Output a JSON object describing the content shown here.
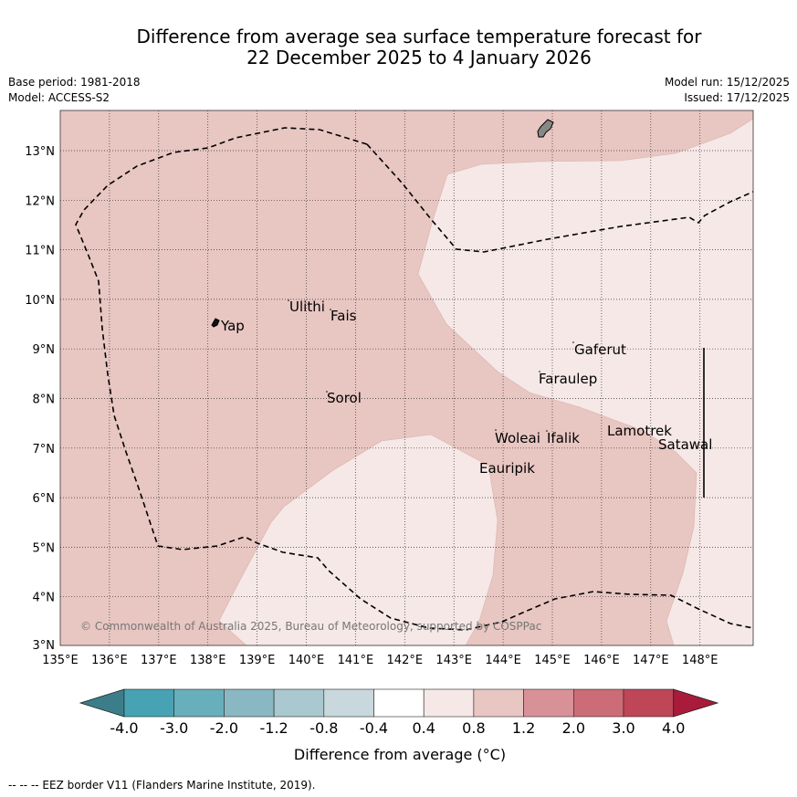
{
  "title": {
    "line1": "Difference from average sea surface temperature forecast for",
    "line2": "22 December 2025 to 4 January 2026"
  },
  "meta": {
    "base_period": "Base period: 1981-2018",
    "model": "Model: ACCESS-S2",
    "model_run": "Model run: 15/12/2025",
    "issued": "Issued: 17/12/2025"
  },
  "map": {
    "lon_labels": [
      "135°E",
      "136°E",
      "137°E",
      "138°E",
      "139°E",
      "140°E",
      "141°E",
      "142°E",
      "143°E",
      "144°E",
      "145°E",
      "146°E",
      "147°E",
      "148°E"
    ],
    "lat_labels": [
      "13°N",
      "12°N",
      "11°N",
      "10°N",
      "9°N",
      "8°N",
      "7°N",
      "6°N",
      "5°N",
      "4°N",
      "3°N"
    ],
    "places": [
      "Yap",
      "Ulithi",
      "Fais",
      "Gaferut",
      "Faraulep",
      "Sorol",
      "Lamotrek",
      "Woleai",
      "Ifalik",
      "Satawal",
      "Eauripik"
    ],
    "copyright": "© Commonwealth of Australia 2025, Bureau of Meteorology, supported by COSPPac",
    "colors": {
      "anomaly_0_4_to_0_8": "#f5e8e6",
      "anomaly_0_8_to_1_2": "#e8c6c2"
    }
  },
  "colorbar": {
    "ticks": [
      "-4.0",
      "-3.0",
      "-2.0",
      "-1.2",
      "-0.8",
      "-0.4",
      "0.4",
      "0.8",
      "1.2",
      "2.0",
      "3.0",
      "4.0"
    ],
    "colors": [
      "#3b7e89",
      "#47a3b3",
      "#69aebb",
      "#89b8c3",
      "#a9c8cf",
      "#c8d8dc",
      "#ffffff",
      "#f5e8e6",
      "#e8c6c2",
      "#d99198",
      "#cc6c77",
      "#be4657",
      "#a81b3a"
    ],
    "label": "Difference from average (°C)"
  },
  "footnote": "--  --  -- EEZ border V11 (Flanders Marine Institute, 2019)."
}
